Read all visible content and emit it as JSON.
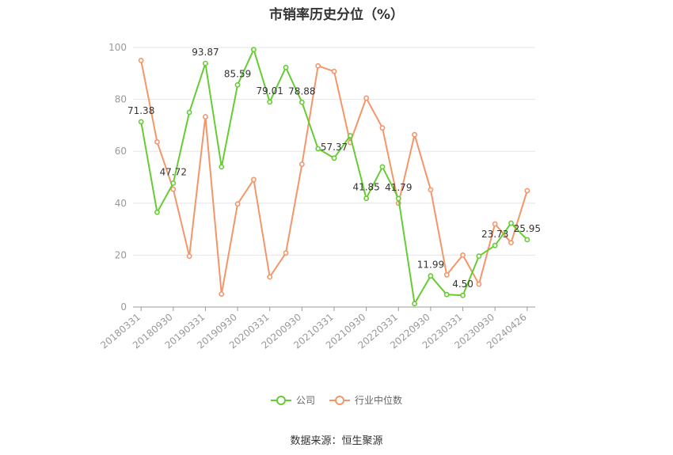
{
  "title": "市销率历史分位（%）",
  "source": "数据来源：恒生聚源",
  "legend": {
    "company": "公司",
    "industry": "行业中位数"
  },
  "colors": {
    "company": "#66cc33",
    "industry": "#f4956a",
    "axis": "#999999",
    "grid": "#e6e6e6",
    "label": "#333333"
  },
  "chart_data": {
    "type": "line",
    "title": "市销率历史分位（%）",
    "xlabel": "",
    "ylabel": "",
    "ylim": [
      0,
      100
    ],
    "yticks": [
      0,
      20,
      40,
      60,
      80,
      100
    ],
    "grid": true,
    "legend_position": "bottom",
    "x": [
      "20180331",
      "20180630",
      "20180930",
      "20181231",
      "20190331",
      "20190630",
      "20190930",
      "20191231",
      "20200331",
      "20200630",
      "20200930",
      "20201231",
      "20210331",
      "20210630",
      "20210930",
      "20211231",
      "20220331",
      "20220630",
      "20220930",
      "20221231",
      "20230331",
      "20230630",
      "20230930",
      "20231231",
      "20240426"
    ],
    "x_tick_labels": [
      "20180331",
      "20180930",
      "20190331",
      "20190930",
      "20200331",
      "20200930",
      "20210331",
      "20210930",
      "20220331",
      "20220930",
      "20230331",
      "20230930",
      "20240426"
    ],
    "series": [
      {
        "name": "公司",
        "values": [
          71.38,
          36.5,
          47.72,
          75.0,
          93.87,
          54.0,
          85.59,
          99.2,
          79.01,
          92.3,
          78.88,
          61.0,
          57.37,
          66.0,
          41.85,
          54.0,
          41.79,
          1.3,
          11.99,
          4.8,
          4.5,
          19.6,
          23.73,
          32.3,
          25.95
        ],
        "data_labels": [
          {
            "index": 0,
            "text": "71.38"
          },
          {
            "index": 2,
            "text": "47.72"
          },
          {
            "index": 4,
            "text": "93.87"
          },
          {
            "index": 6,
            "text": "85.59"
          },
          {
            "index": 8,
            "text": "79.01"
          },
          {
            "index": 10,
            "text": "78.88"
          },
          {
            "index": 12,
            "text": "57.37"
          },
          {
            "index": 14,
            "text": "41.85"
          },
          {
            "index": 16,
            "text": "41.79"
          },
          {
            "index": 18,
            "text": "11.99"
          },
          {
            "index": 20,
            "text": "4.50"
          },
          {
            "index": 22,
            "text": "23.73"
          },
          {
            "index": 24,
            "text": "25.95"
          }
        ]
      },
      {
        "name": "行业中位数",
        "values": [
          95.0,
          63.6,
          45.4,
          19.6,
          73.3,
          5.0,
          39.7,
          49.1,
          11.6,
          20.8,
          55.0,
          92.9,
          90.8,
          63.4,
          80.5,
          69.0,
          40.0,
          66.4,
          45.2,
          12.4,
          20.0,
          8.8,
          32.0,
          24.8,
          44.8
        ]
      }
    ]
  }
}
